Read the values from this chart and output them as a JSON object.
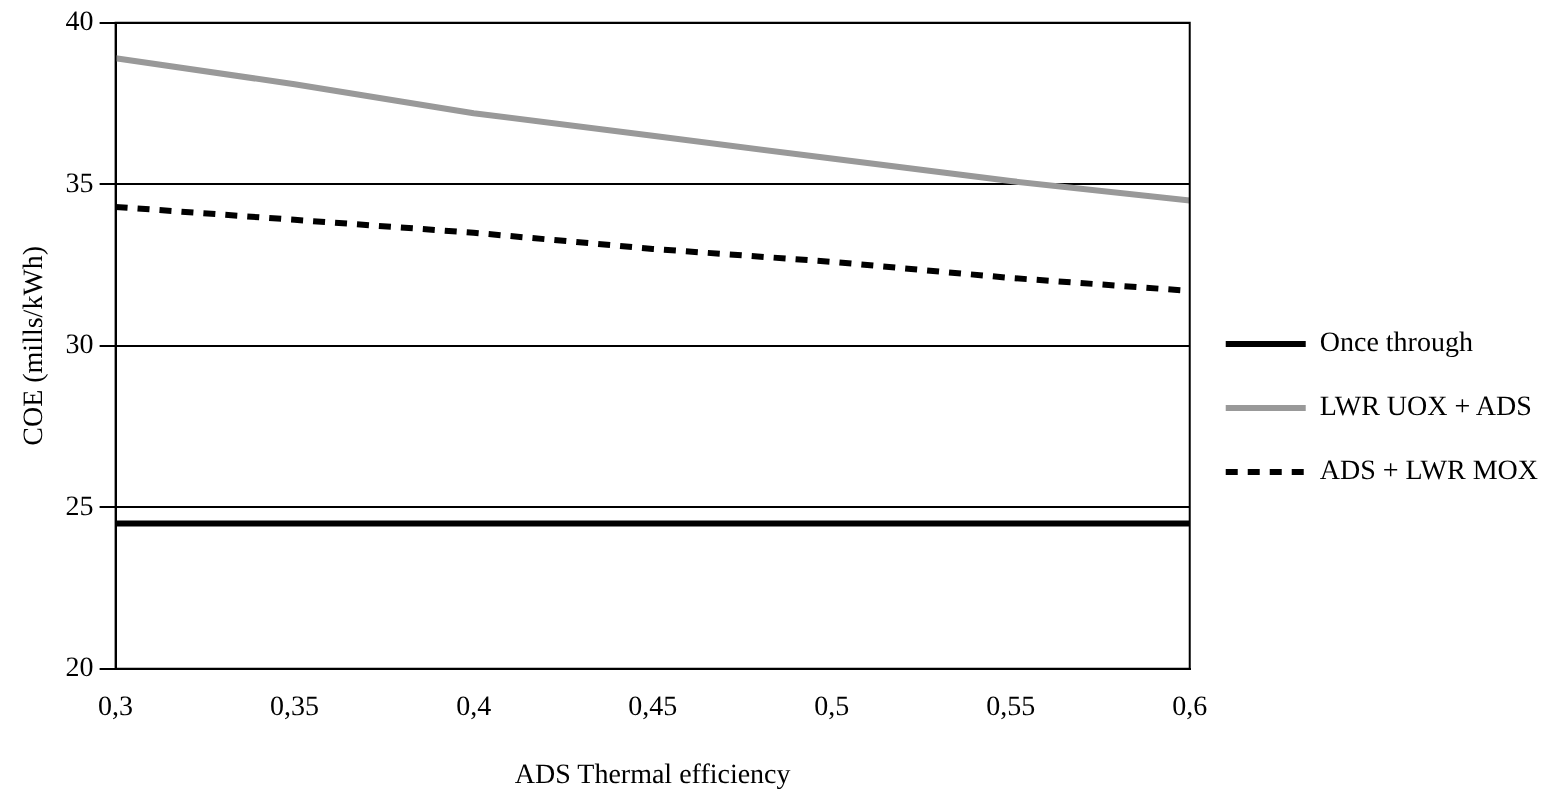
{
  "chart_data": {
    "type": "line",
    "xlabel": "ADS Thermal efficiency",
    "ylabel": "COE (mills/kWh)",
    "x": [
      0.3,
      0.35,
      0.4,
      0.45,
      0.5,
      0.55,
      0.6
    ],
    "series": [
      {
        "name": "Once through",
        "color": "#000000",
        "line_style": "solid",
        "values": [
          24.5,
          24.5,
          24.5,
          24.5,
          24.5,
          24.5,
          24.5
        ]
      },
      {
        "name": "LWR UOX + ADS",
        "color": "#999999",
        "line_style": "solid",
        "values": [
          38.9,
          38.1,
          37.2,
          36.5,
          35.8,
          35.1,
          34.5
        ]
      },
      {
        "name": "ADS + LWR MOX",
        "color": "#000000",
        "line_style": "dashed",
        "values": [
          34.3,
          33.9,
          33.5,
          33.0,
          32.6,
          32.1,
          31.7
        ]
      }
    ],
    "xlim": [
      0.3,
      0.6
    ],
    "xticks": [
      {
        "value": 0.3,
        "label": "0,3"
      },
      {
        "value": 0.35,
        "label": "0,35"
      },
      {
        "value": 0.4,
        "label": "0,4"
      },
      {
        "value": 0.45,
        "label": "0,45"
      },
      {
        "value": 0.5,
        "label": "0,5"
      },
      {
        "value": 0.55,
        "label": "0,55"
      },
      {
        "value": 0.6,
        "label": "0,6"
      }
    ],
    "ylim": [
      20,
      40
    ],
    "yticks": [
      20,
      25,
      30,
      35,
      40
    ],
    "grid": "y",
    "legend": "right",
    "marker": "none"
  }
}
